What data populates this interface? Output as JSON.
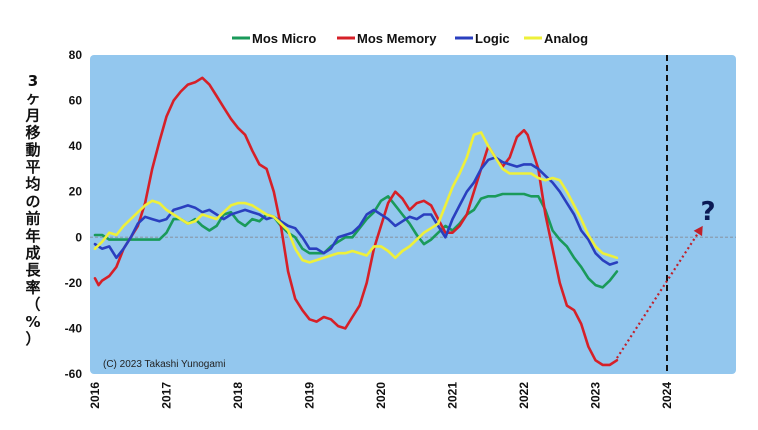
{
  "chart_data": {
    "type": "line",
    "ylabel": "3ヶ月移動平均の前年成長率（%）",
    "ylim": [
      -60,
      80
    ],
    "yticks": [
      "80",
      "60",
      "40",
      "20",
      "0",
      "-20",
      "-40",
      "-60"
    ],
    "xlim": [
      2016,
      2025
    ],
    "xticks": [
      "2016",
      "2017",
      "2018",
      "2019",
      "2020",
      "2021",
      "2022",
      "2023",
      "2024"
    ],
    "copyright": "(C)  2023 Takashi Yunogami",
    "annotation": "?",
    "forecast_line_x": 2024,
    "grid": "horizontal dashed zero line only",
    "legend_position": "top-center",
    "colors": {
      "plot_bg": "#93c7ee",
      "grid": "#8a9db0",
      "forecast": "#111111",
      "arrow": "#c0202a"
    },
    "series": [
      {
        "name": "Mos Micro",
        "color": "#1a9a5a",
        "x": [
          2016.0,
          2016.1,
          2016.2,
          2016.35,
          2016.5,
          2016.7,
          2016.9,
          2017.0,
          2017.1,
          2017.2,
          2017.3,
          2017.4,
          2017.5,
          2017.6,
          2017.7,
          2017.8,
          2017.9,
          2018.0,
          2018.1,
          2018.2,
          2018.3,
          2018.4,
          2018.5,
          2018.6,
          2018.7,
          2018.8,
          2018.9,
          2019.0,
          2019.1,
          2019.2,
          2019.3,
          2019.4,
          2019.5,
          2019.6,
          2019.7,
          2019.8,
          2019.9,
          2020.0,
          2020.1,
          2020.2,
          2020.3,
          2020.4,
          2020.5,
          2020.6,
          2020.7,
          2020.8,
          2020.9,
          2021.0,
          2021.1,
          2021.2,
          2021.3,
          2021.4,
          2021.5,
          2021.6,
          2021.7,
          2021.8,
          2021.9,
          2022.0,
          2022.1,
          2022.2,
          2022.3,
          2022.4,
          2022.5,
          2022.6,
          2022.7,
          2022.8,
          2022.9,
          2023.0,
          2023.1,
          2023.2,
          2023.3
        ],
        "y": [
          1,
          1,
          -1,
          -1,
          -1,
          -1,
          -1,
          2,
          8,
          8,
          6,
          8,
          5,
          3,
          5,
          10,
          11,
          7,
          5,
          8,
          7,
          10,
          9,
          5,
          2,
          0,
          -5,
          -7,
          -7,
          -7,
          -4,
          -2,
          0,
          0,
          4,
          8,
          11,
          16,
          18,
          14,
          10,
          6,
          1,
          -3,
          -1,
          2,
          5,
          3,
          6,
          10,
          12,
          17,
          18,
          18,
          19,
          19,
          19,
          19,
          18,
          18,
          12,
          3,
          -1,
          -4,
          -9,
          -13,
          -18,
          -21,
          -22,
          -19,
          -15
        ]
      },
      {
        "name": "Mos Memory",
        "color": "#d62028",
        "x": [
          2016.0,
          2016.05,
          2016.1,
          2016.2,
          2016.3,
          2016.4,
          2016.5,
          2016.6,
          2016.7,
          2016.8,
          2016.9,
          2017.0,
          2017.1,
          2017.2,
          2017.3,
          2017.4,
          2017.5,
          2017.6,
          2017.7,
          2017.8,
          2017.9,
          2018.0,
          2018.1,
          2018.2,
          2018.3,
          2018.4,
          2018.5,
          2018.6,
          2018.7,
          2018.8,
          2018.9,
          2019.0,
          2019.1,
          2019.2,
          2019.3,
          2019.4,
          2019.5,
          2019.6,
          2019.7,
          2019.8,
          2019.9,
          2020.0,
          2020.1,
          2020.2,
          2020.3,
          2020.4,
          2020.5,
          2020.6,
          2020.7,
          2020.8,
          2020.9,
          2021.0,
          2021.1,
          2021.2,
          2021.3,
          2021.4,
          2021.5,
          2021.6,
          2021.7,
          2021.8,
          2021.9,
          2022.0,
          2022.05,
          2022.1,
          2022.2,
          2022.3,
          2022.4,
          2022.5,
          2022.6,
          2022.7,
          2022.8,
          2022.9,
          2023.0,
          2023.1,
          2023.2,
          2023.3
        ],
        "y": [
          -18,
          -21,
          -19,
          -17,
          -13,
          -5,
          0,
          5,
          15,
          30,
          42,
          53,
          60,
          64,
          67,
          68,
          70,
          67,
          62,
          57,
          52,
          48,
          45,
          38,
          32,
          30,
          20,
          5,
          -15,
          -27,
          -32,
          -36,
          -37,
          -35,
          -36,
          -39,
          -40,
          -35,
          -30,
          -20,
          -5,
          5,
          15,
          20,
          17,
          12,
          15,
          16,
          14,
          8,
          2,
          2,
          5,
          10,
          20,
          30,
          40,
          35,
          31,
          35,
          44,
          47,
          45,
          40,
          30,
          10,
          -5,
          -20,
          -30,
          -32,
          -38,
          -48,
          -54,
          -56,
          -56,
          -54
        ]
      },
      {
        "name": "Logic",
        "color": "#2a3fbf",
        "x": [
          2016.0,
          2016.1,
          2016.2,
          2016.3,
          2016.4,
          2016.5,
          2016.6,
          2016.7,
          2016.8,
          2016.9,
          2017.0,
          2017.1,
          2017.2,
          2017.3,
          2017.4,
          2017.5,
          2017.6,
          2017.7,
          2017.8,
          2017.9,
          2018.0,
          2018.1,
          2018.2,
          2018.3,
          2018.4,
          2018.5,
          2018.6,
          2018.7,
          2018.8,
          2018.9,
          2019.0,
          2019.1,
          2019.2,
          2019.3,
          2019.4,
          2019.5,
          2019.6,
          2019.7,
          2019.8,
          2019.9,
          2020.0,
          2020.1,
          2020.2,
          2020.3,
          2020.4,
          2020.5,
          2020.6,
          2020.7,
          2020.8,
          2020.9,
          2021.0,
          2021.1,
          2021.2,
          2021.3,
          2021.4,
          2021.5,
          2021.6,
          2021.7,
          2021.8,
          2021.9,
          2022.0,
          2022.1,
          2022.2,
          2022.3,
          2022.4,
          2022.5,
          2022.6,
          2022.7,
          2022.8,
          2022.9,
          2023.0,
          2023.1,
          2023.2,
          2023.3
        ],
        "y": [
          -3,
          -5,
          -4,
          -9,
          -5,
          0,
          6,
          9,
          8,
          7,
          8,
          12,
          13,
          14,
          13,
          11,
          12,
          10,
          8,
          10,
          11,
          12,
          11,
          10,
          8,
          9,
          7,
          5,
          4,
          0,
          -5,
          -5,
          -7,
          -5,
          0,
          1,
          2,
          5,
          10,
          12,
          10,
          8,
          5,
          7,
          9,
          8,
          10,
          10,
          5,
          0,
          8,
          14,
          20,
          24,
          30,
          34,
          35,
          33,
          32,
          31,
          32,
          32,
          30,
          27,
          24,
          20,
          15,
          10,
          3,
          -1,
          -7,
          -10,
          -12,
          -11
        ]
      },
      {
        "name": "Analog",
        "color": "#eef03a",
        "x": [
          2016.0,
          2016.1,
          2016.2,
          2016.3,
          2016.4,
          2016.5,
          2016.6,
          2016.7,
          2016.8,
          2016.9,
          2017.0,
          2017.1,
          2017.2,
          2017.3,
          2017.4,
          2017.5,
          2017.6,
          2017.7,
          2017.8,
          2017.9,
          2018.0,
          2018.1,
          2018.2,
          2018.3,
          2018.4,
          2018.5,
          2018.6,
          2018.7,
          2018.8,
          2018.9,
          2019.0,
          2019.1,
          2019.2,
          2019.3,
          2019.4,
          2019.5,
          2019.6,
          2019.7,
          2019.8,
          2019.9,
          2020.0,
          2020.1,
          2020.2,
          2020.3,
          2020.4,
          2020.5,
          2020.6,
          2020.7,
          2020.8,
          2020.9,
          2021.0,
          2021.1,
          2021.2,
          2021.3,
          2021.4,
          2021.5,
          2021.6,
          2021.7,
          2021.8,
          2021.9,
          2022.0,
          2022.1,
          2022.2,
          2022.3,
          2022.4,
          2022.5,
          2022.6,
          2022.7,
          2022.8,
          2022.9,
          2023.0,
          2023.1,
          2023.2,
          2023.3
        ],
        "y": [
          -5,
          -2,
          2,
          1,
          5,
          8,
          11,
          14,
          16,
          15,
          12,
          10,
          8,
          6,
          7,
          10,
          9,
          8,
          11,
          14,
          15,
          15,
          14,
          12,
          10,
          9,
          6,
          3,
          -5,
          -10,
          -11,
          -10,
          -9,
          -8,
          -7,
          -7,
          -6,
          -7,
          -8,
          -4,
          -4,
          -6,
          -9,
          -6,
          -4,
          -1,
          2,
          4,
          6,
          14,
          22,
          28,
          35,
          45,
          46,
          40,
          35,
          30,
          28,
          28,
          28,
          28,
          26,
          25,
          26,
          25,
          20,
          14,
          8,
          1,
          -4,
          -7,
          -8,
          -9
        ]
      }
    ],
    "arrow": {
      "from": [
        2023.3,
        -53
      ],
      "to": [
        2024.5,
        5
      ]
    }
  }
}
